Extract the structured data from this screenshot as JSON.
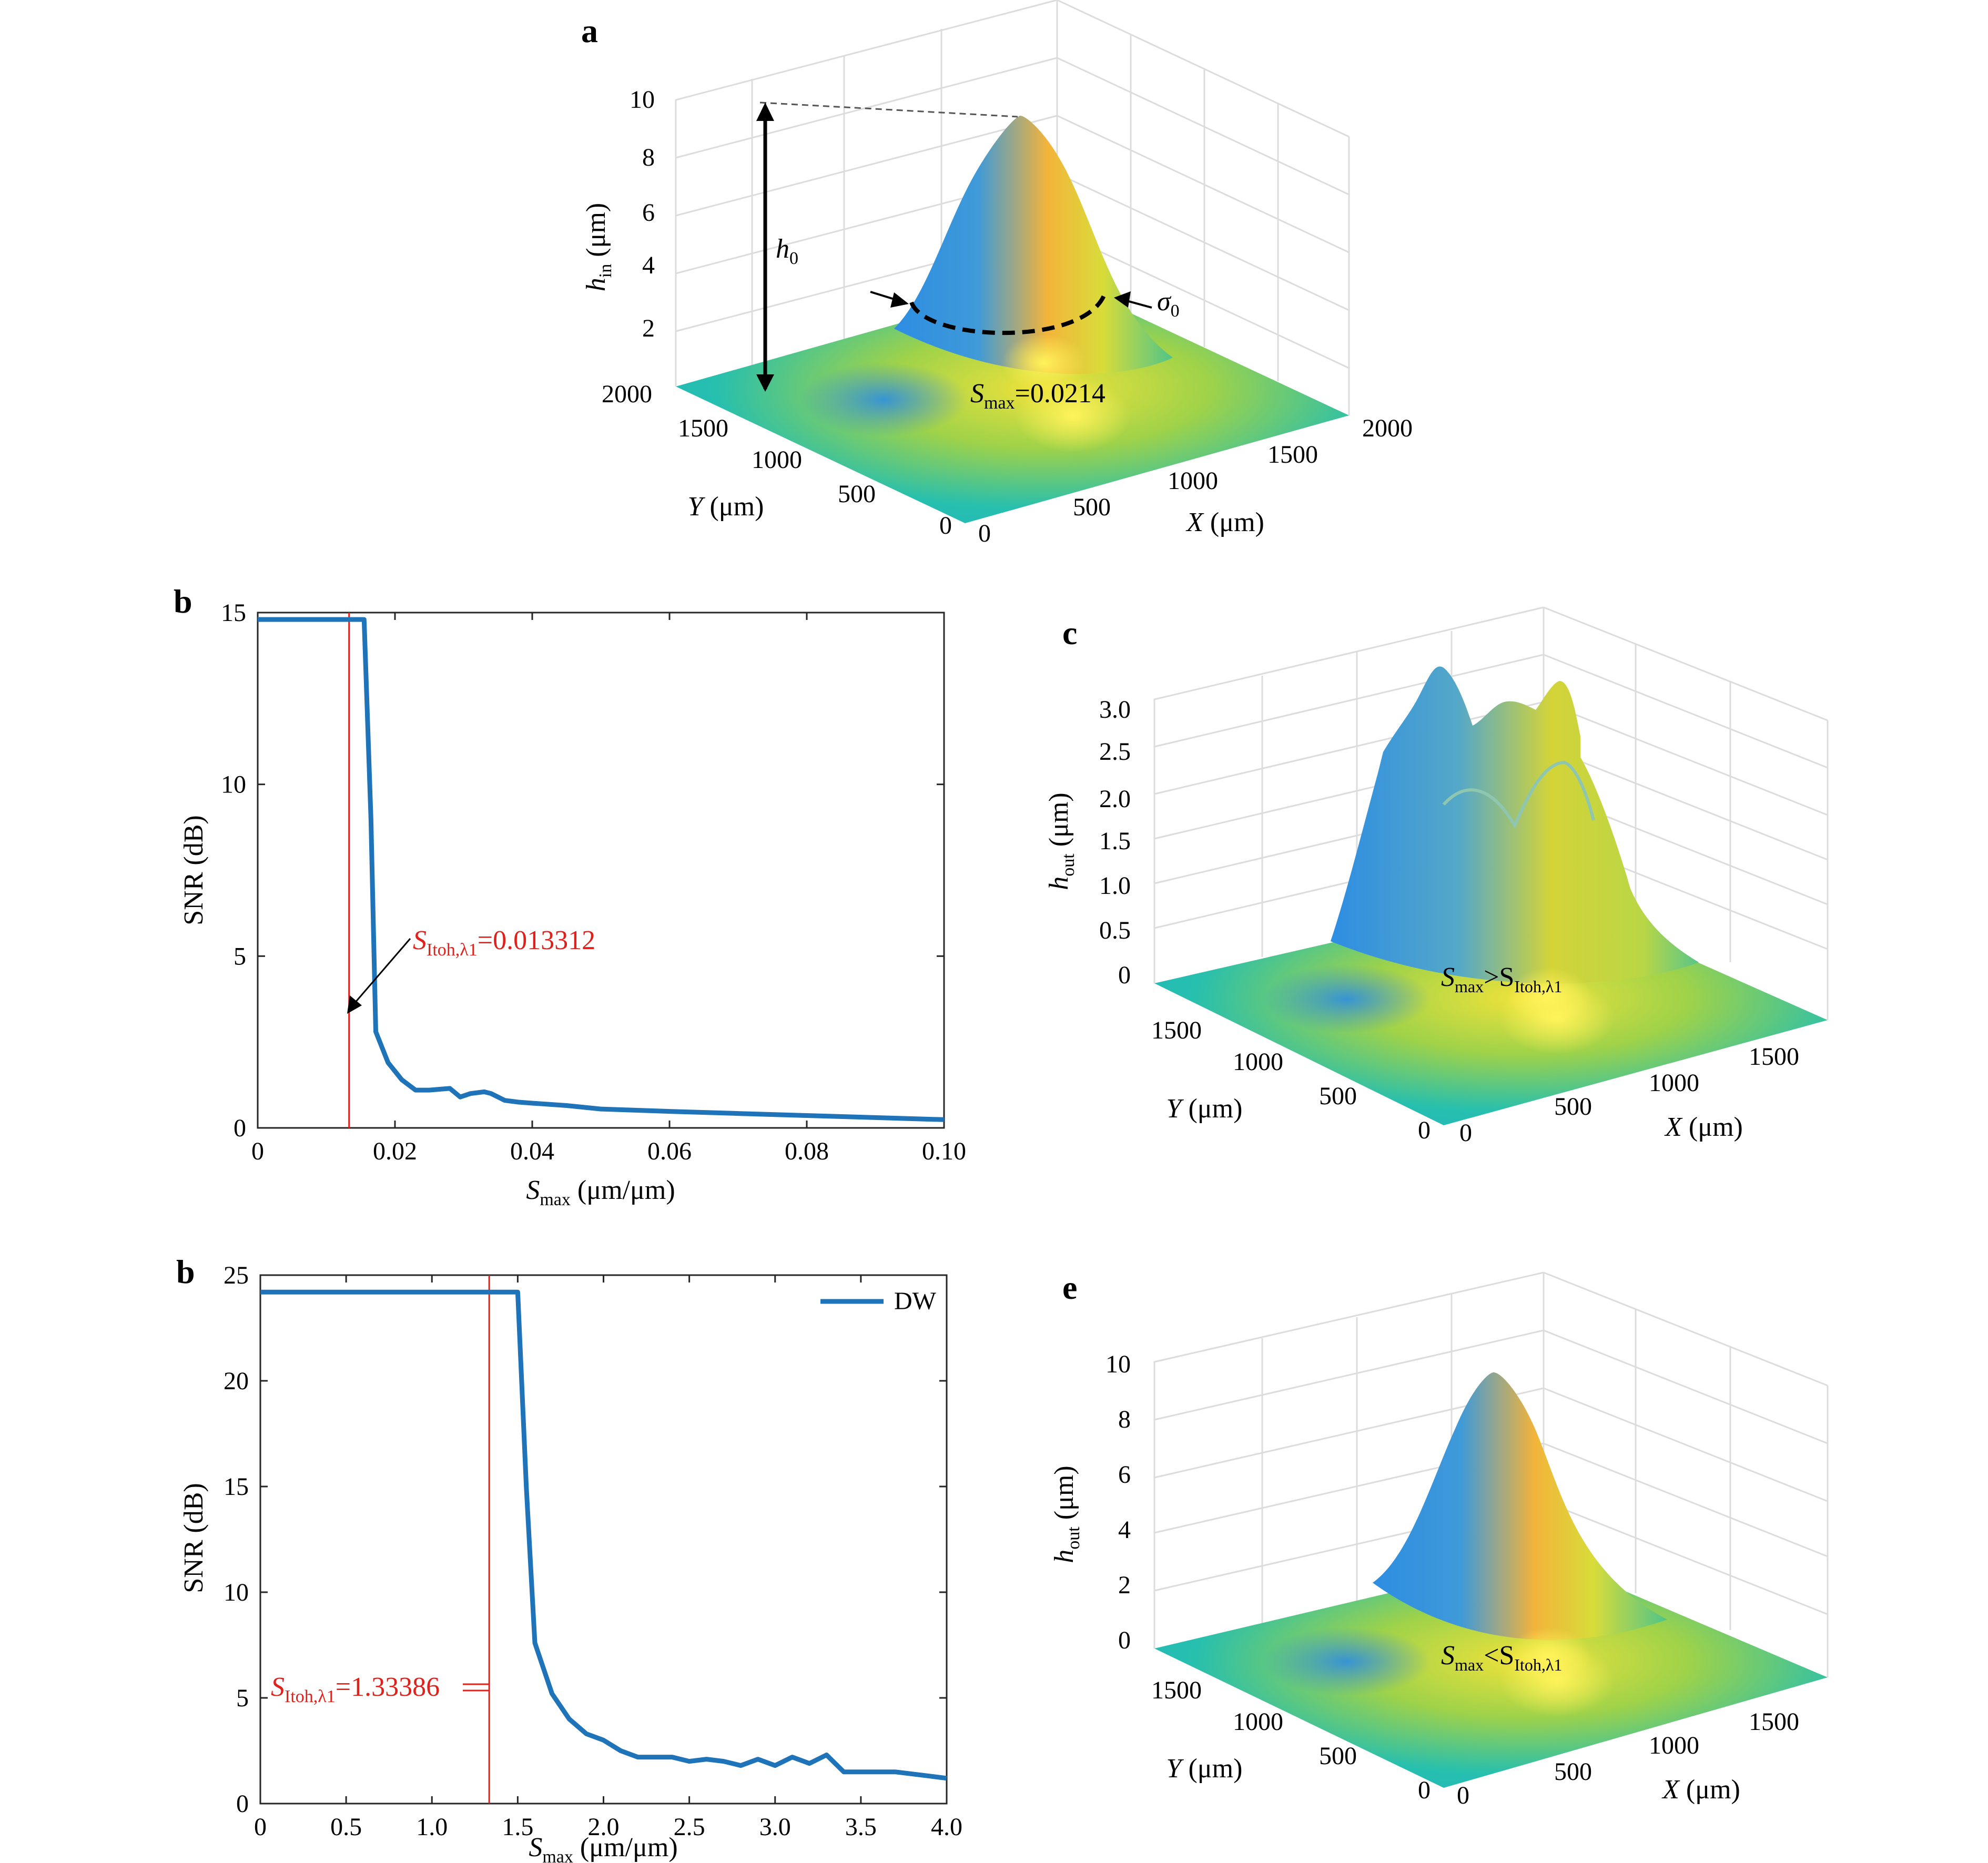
{
  "colors": {
    "series": "#1f73b8",
    "threshold": "#e0201b",
    "surface_blue": "#2d8de2",
    "surface_teal": "#1fbdb8",
    "surface_yellow": "#f6e62a",
    "grid": "#dcdcdc"
  },
  "chart_data": [
    {
      "panel": "a",
      "type": "surface",
      "zlabel_main": "h",
      "zlabel_sub": "in",
      "zlabel_unit": " (μm)",
      "xlabel_main": "X",
      "xlabel_unit": " (μm)",
      "ylabel_main": "Y",
      "ylabel_unit": " (μm)",
      "z_ticks": [
        "10",
        "8",
        "6",
        "4",
        "2"
      ],
      "x_ticks": [
        "0",
        "500",
        "1000",
        "1500",
        "2000"
      ],
      "y_ticks": [
        "0",
        "500",
        "1000",
        "1500",
        "2000"
      ],
      "zlim": [
        0,
        10
      ],
      "xlim": [
        0,
        2000
      ],
      "ylim": [
        0,
        2000
      ],
      "annotation_h0_main": "h",
      "annotation_h0_sub": "0",
      "annotation_sigma_main": "σ",
      "annotation_sigma_sub": "0",
      "annotation_smax_main": "S",
      "annotation_smax_sub": "max",
      "annotation_smax_val": "=0.0214"
    },
    {
      "panel": "b",
      "type": "line",
      "ylabel": "SNR (dB)",
      "xlabel_main": "S",
      "xlabel_sub": "max",
      "xlabel_unit": " (μm/μm)",
      "xlim": [
        0,
        0.1
      ],
      "ylim": [
        0,
        15
      ],
      "x_tick_labels": [
        "0",
        "0.02",
        "0.04",
        "0.06",
        "0.08",
        "0.10"
      ],
      "x_tick_values": [
        0,
        0.02,
        0.04,
        0.06,
        0.08,
        0.1
      ],
      "y_tick_labels": [
        "0",
        "5",
        "10",
        "15"
      ],
      "y_tick_values": [
        0,
        5,
        10,
        15
      ],
      "threshold": 0.013312,
      "threshold_label_main": "S",
      "threshold_label_sub": "Itoh,λ1",
      "threshold_label_val": "=0.013312",
      "series": [
        {
          "x": [
            0,
            0.0155,
            0.0165,
            0.0172,
            0.019,
            0.021,
            0.023,
            0.025,
            0.028,
            0.0295,
            0.031,
            0.033,
            0.034,
            0.036,
            0.038,
            0.04,
            0.045,
            0.05,
            0.06,
            0.07,
            0.08,
            0.09,
            0.1
          ],
          "y": [
            14.8,
            14.8,
            9.0,
            2.8,
            1.9,
            1.4,
            1.1,
            1.1,
            1.15,
            0.9,
            1.0,
            1.05,
            1.0,
            0.8,
            0.75,
            0.72,
            0.65,
            0.55,
            0.48,
            0.42,
            0.36,
            0.3,
            0.24
          ]
        }
      ]
    },
    {
      "panel": "c",
      "type": "surface",
      "zlabel_main": "h",
      "zlabel_sub": "out",
      "zlabel_unit": " (μm)",
      "xlabel_main": "X",
      "xlabel_unit": " (μm)",
      "ylabel_main": "Y",
      "ylabel_unit": " (μm)",
      "z_ticks": [
        "3.0",
        "2.5",
        "2.0",
        "1.5",
        "1.0",
        "0.5",
        "0"
      ],
      "x_ticks": [
        "0",
        "500",
        "1000",
        "1500"
      ],
      "y_ticks": [
        "0",
        "500",
        "1000",
        "1500"
      ],
      "annotation_main": "S",
      "annotation_sub1": "max",
      "annotation_mid": ">S",
      "annotation_sub2": "Itoh,λ1"
    },
    {
      "panel": "b",
      "type": "line",
      "ylabel": "SNR (dB)",
      "xlabel_main": "S",
      "xlabel_sub": "max",
      "xlabel_unit": " (μm/μm)",
      "xlim": [
        0,
        4.0
      ],
      "ylim": [
        0,
        25
      ],
      "x_tick_labels": [
        "0",
        "0.5",
        "1.0",
        "1.5",
        "2.0",
        "2.5",
        "3.0",
        "3.5",
        "4.0"
      ],
      "x_tick_values": [
        0,
        0.5,
        1.0,
        1.5,
        2.0,
        2.5,
        3.0,
        3.5,
        4.0
      ],
      "y_tick_labels": [
        "0",
        "5",
        "10",
        "15",
        "20",
        "25"
      ],
      "y_tick_values": [
        0,
        5,
        10,
        15,
        20,
        25
      ],
      "threshold": 1.33386,
      "threshold_label_main": "S",
      "threshold_label_sub": "Itoh,λ1",
      "threshold_label_val": "=1.33386",
      "legend": "top-right",
      "series": [
        {
          "name": "DW",
          "x": [
            0,
            1.5,
            1.55,
            1.6,
            1.7,
            1.8,
            1.9,
            2.0,
            2.1,
            2.2,
            2.3,
            2.4,
            2.5,
            2.6,
            2.7,
            2.8,
            2.9,
            3.0,
            3.1,
            3.2,
            3.3,
            3.4,
            3.5,
            3.6,
            3.7,
            3.8,
            3.9,
            4.0
          ],
          "y": [
            24.2,
            24.2,
            15.0,
            7.6,
            5.2,
            4.0,
            3.3,
            3.0,
            2.5,
            2.2,
            2.2,
            2.2,
            2.0,
            2.1,
            2.0,
            1.8,
            2.1,
            1.8,
            2.2,
            1.9,
            2.3,
            1.5,
            1.5,
            1.5,
            1.5,
            1.4,
            1.3,
            1.2
          ]
        }
      ]
    },
    {
      "panel": "e",
      "type": "surface",
      "zlabel_main": "h",
      "zlabel_sub": "out",
      "zlabel_unit": " (μm)",
      "xlabel_main": "X",
      "xlabel_unit": " (μm)",
      "ylabel_main": "Y",
      "ylabel_unit": " (μm)",
      "z_ticks": [
        "10",
        "8",
        "6",
        "4",
        "2",
        "0"
      ],
      "x_ticks": [
        "0",
        "500",
        "1000",
        "1500"
      ],
      "y_ticks": [
        "0",
        "500",
        "1000",
        "1500"
      ],
      "annotation_main": "S",
      "annotation_sub1": "max",
      "annotation_mid": "<S",
      "annotation_sub2": "Itoh,λ1"
    }
  ]
}
